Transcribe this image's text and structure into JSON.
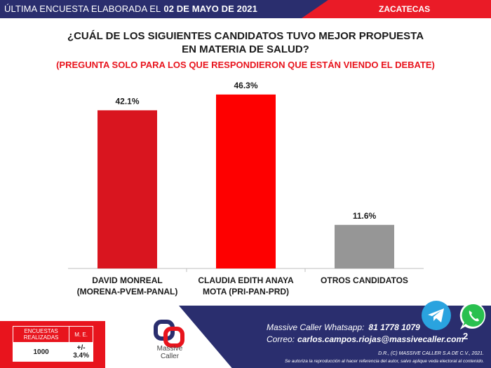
{
  "header": {
    "survey_label": "ÚLTIMA ENCUESTA ELABORADA EL",
    "survey_date": "02 DE MAYO DE 2021",
    "state": "ZACATECAS"
  },
  "title": {
    "line1": "¿CUÁL DE LOS SIGUIENTES CANDIDATOS TUVO MEJOR PROPUESTA",
    "line2": "EN MATERIA DE SALUD?",
    "note": "(PREGUNTA SOLO PARA LOS QUE RESPONDIERON QUE ESTÁN VIENDO EL DEBATE)"
  },
  "chart_data": {
    "type": "bar",
    "categories": [
      [
        "DAVID MONREAL",
        "(MORENA-PVEM-PANAL)"
      ],
      [
        "CLAUDIA EDITH ANAYA",
        "MOTA (PRI-PAN-PRD)"
      ],
      [
        "OTROS CANDIDATOS"
      ]
    ],
    "values": [
      42.1,
      46.3,
      11.6
    ],
    "value_labels": [
      "42.1%",
      "46.3%",
      "11.6%"
    ],
    "colors": [
      "#d9151f",
      "#fe0000",
      "#969696"
    ],
    "ylim": [
      0,
      50
    ],
    "grid": false
  },
  "stats": {
    "surveys_header": "ENCUESTAS REALIZADAS",
    "me_header": "M. E.",
    "surveys_value": "1000",
    "me_value": "+/- 3.4%"
  },
  "brand": {
    "name_line1": "Massive",
    "name_line2": "Caller",
    "whatsapp_label": "Massive Caller Whatsapp:",
    "whatsapp_number": "81 1778 1079",
    "mail_label": "Correo:",
    "mail_address": "carlos.campos.riojas@massivecaller.com",
    "copyright": "D.R., (C) MASSIVE CALLER S.A DE C.V., 2021.",
    "disclaimer": "Se autoriza la reproducción al hacer referencia del autor, salvo aplique veda electoral al contenido."
  },
  "page_number": "2",
  "colors": {
    "navy": "#2a2e6e",
    "red": "#e8141d"
  }
}
